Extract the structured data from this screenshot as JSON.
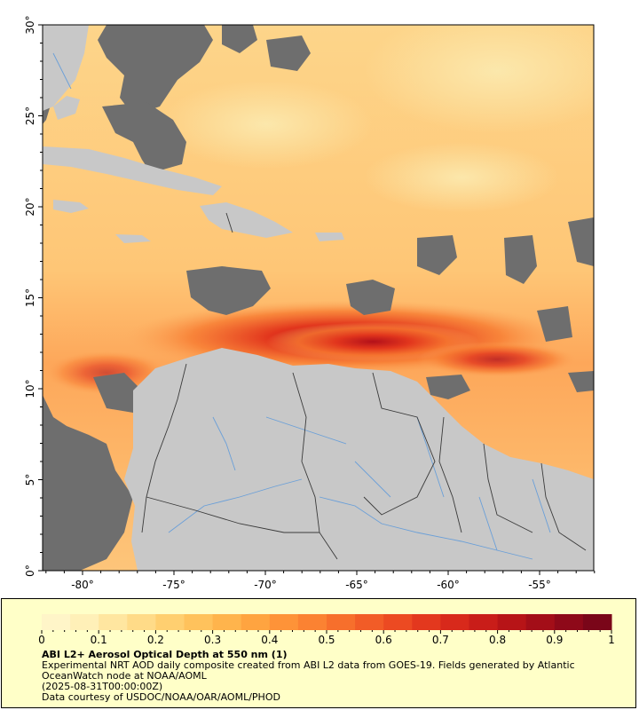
{
  "map": {
    "lat_ticks": [
      "30°",
      "25°",
      "20°",
      "15°",
      "10°",
      "5°",
      "0°"
    ],
    "lon_ticks": [
      "-80°",
      "-75°",
      "-70°",
      "-65°",
      "-60°",
      "-55°"
    ],
    "colors": {
      "land": "#c8c8c8",
      "no_data": "#6e6e6e",
      "river": "#6a9fd8",
      "border": "#3a3a3a"
    }
  },
  "colorbar": {
    "ticks": [
      "0",
      "0.1",
      "0.2",
      "0.3",
      "0.4",
      "0.5",
      "0.6",
      "0.7",
      "0.8",
      "0.9",
      "1"
    ],
    "colors": [
      "#fff5c8",
      "#fff0b8",
      "#ffe6a0",
      "#ffdb88",
      "#ffcf70",
      "#ffc25c",
      "#ffb44c",
      "#ffa440",
      "#fe9338",
      "#fb8232",
      "#f76f2c",
      "#f25c27",
      "#ec4a22",
      "#e3381e",
      "#d8291b",
      "#c91d19",
      "#b71417",
      "#a30e18",
      "#8e0919",
      "#7a0619"
    ]
  },
  "caption": {
    "title": "ABI L2+ Aerosol Optical Depth at 550 nm (1)",
    "description": "Experimental NRT AOD daily composite created from ABI L2 data from GOES-19. Fields generated by Atlantic OceanWatch node at NOAA/AOML",
    "timestamp": "(2025-08-31T00:00:00Z)",
    "credit": "Data courtesy of USDOC/NOAA/OAR/AOML/PHOD"
  }
}
